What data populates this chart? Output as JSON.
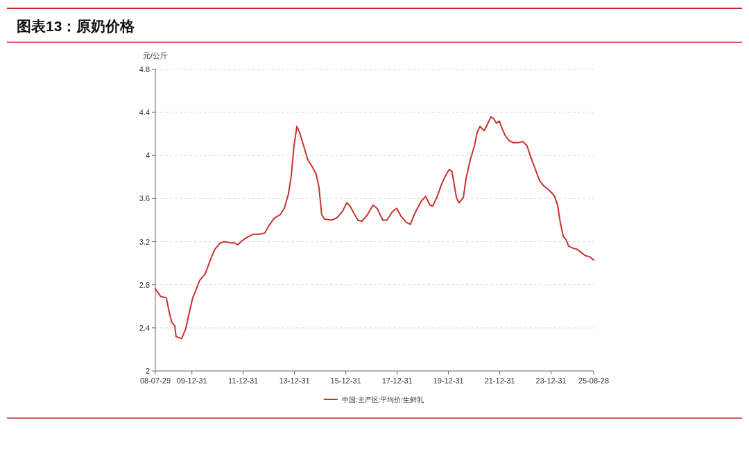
{
  "chart_data": {
    "type": "line",
    "title": "图表13：原奶价格",
    "ylabel": "元/公斤",
    "xlim": [
      "2008-07-29",
      "2025-08-28"
    ],
    "xticks": [
      {
        "value": "2008-07-29",
        "label": "08-07-29"
      },
      {
        "value": "2009-12-31",
        "label": "09-12-31"
      },
      {
        "value": "2011-12-31",
        "label": "11-12-31"
      },
      {
        "value": "2013-12-31",
        "label": "13-12-31"
      },
      {
        "value": "2015-12-31",
        "label": "15-12-31"
      },
      {
        "value": "2017-12-31",
        "label": "17-12-31"
      },
      {
        "value": "2019-12-31",
        "label": "19-12-31"
      },
      {
        "value": "2021-12-31",
        "label": "21-12-31"
      },
      {
        "value": "2023-12-31",
        "label": "23-12-31"
      },
      {
        "value": "2025-08-28",
        "label": "25-08-28"
      }
    ],
    "ylim": [
      2,
      4.8
    ],
    "yticks": [
      2,
      2.4,
      2.8,
      3.2,
      3.6,
      4,
      4.4,
      4.8
    ],
    "grid": "y",
    "legend": "bottom",
    "marker": "none",
    "line_style": "solid",
    "x": [
      "2008-07-29",
      "2008-10-15",
      "2009-01-01",
      "2009-02-10",
      "2009-03-20",
      "2009-05-01",
      "2009-05-20",
      "2009-06-28",
      "2009-08-07",
      "2009-10-04",
      "2009-11-13",
      "2010-01-12",
      "2010-02-20",
      "2010-04-20",
      "2010-07-08",
      "2010-09-25",
      "2010-11-24",
      "2011-02-10",
      "2011-04-10",
      "2011-06-28",
      "2011-08-25",
      "2011-10-15",
      "2011-12-01",
      "2012-02-20",
      "2012-05-28",
      "2012-08-17",
      "2012-11-03",
      "2013-01-01",
      "2013-03-20",
      "2013-06-10",
      "2013-08-07",
      "2013-10-04",
      "2013-11-13",
      "2013-12-24",
      "2014-02-02",
      "2014-03-10",
      "2014-05-10",
      "2014-07-08",
      "2014-09-05",
      "2014-11-03",
      "2014-12-13",
      "2015-01-22",
      "2015-03-03",
      "2015-06-10",
      "2015-08-25",
      "2015-11-13",
      "2016-01-12",
      "2016-02-20",
      "2016-04-20",
      "2016-06-20",
      "2016-08-17",
      "2016-11-03",
      "2017-01-22",
      "2017-03-20",
      "2017-06-10",
      "2017-08-07",
      "2017-10-27",
      "2017-12-24",
      "2018-02-20",
      "2018-05-10",
      "2018-07-08",
      "2018-09-05",
      "2018-12-13",
      "2019-02-10",
      "2019-04-12",
      "2019-05-20",
      "2019-07-18",
      "2019-10-04",
      "2019-12-04",
      "2020-01-12",
      "2020-02-20",
      "2020-04-01",
      "2020-04-23",
      "2020-05-28",
      "2020-07-30",
      "2020-09-05",
      "2020-11-05",
      "2021-01-05",
      "2021-02-14",
      "2021-03-25",
      "2021-05-22",
      "2021-07-01",
      "2021-08-28",
      "2021-10-08",
      "2021-11-13",
      "2021-12-24",
      "2022-02-02",
      "2022-03-14",
      "2022-05-10",
      "2022-07-08",
      "2022-09-27",
      "2022-11-24",
      "2023-01-22",
      "2023-03-20",
      "2023-05-22",
      "2023-07-18",
      "2023-09-16",
      "2023-11-13",
      "2024-01-15",
      "2024-02-20",
      "2024-04-01",
      "2024-05-10",
      "2024-06-20",
      "2024-07-30",
      "2024-09-05",
      "2024-11-05",
      "2025-01-05",
      "2025-03-03",
      "2025-05-01",
      "2025-07-01",
      "2025-08-28"
    ],
    "series": [
      {
        "name": "中国:主产区:平均价:生鲜乳",
        "color": "#c8312c",
        "values": [
          2.76,
          2.69,
          2.68,
          2.55,
          2.45,
          2.42,
          2.32,
          2.31,
          2.3,
          2.39,
          2.51,
          2.68,
          2.74,
          2.84,
          2.9,
          3.04,
          3.13,
          3.19,
          3.2,
          3.19,
          3.19,
          3.17,
          3.2,
          3.24,
          3.27,
          3.27,
          3.28,
          3.35,
          3.42,
          3.45,
          3.51,
          3.64,
          3.8,
          4.09,
          4.27,
          4.22,
          4.09,
          3.96,
          3.9,
          3.83,
          3.71,
          3.45,
          3.41,
          3.4,
          3.42,
          3.48,
          3.56,
          3.54,
          3.47,
          3.4,
          3.39,
          3.45,
          3.54,
          3.51,
          3.4,
          3.4,
          3.48,
          3.51,
          3.44,
          3.38,
          3.36,
          3.46,
          3.58,
          3.62,
          3.54,
          3.53,
          3.61,
          3.75,
          3.83,
          3.87,
          3.85,
          3.69,
          3.61,
          3.56,
          3.61,
          3.78,
          3.96,
          4.09,
          4.22,
          4.27,
          4.23,
          4.28,
          4.36,
          4.34,
          4.3,
          4.32,
          4.25,
          4.19,
          4.14,
          4.12,
          4.12,
          4.13,
          4.09,
          3.98,
          3.87,
          3.77,
          3.72,
          3.69,
          3.65,
          3.62,
          3.54,
          3.38,
          3.25,
          3.22,
          3.16,
          3.14,
          3.13,
          3.1,
          3.07,
          3.06,
          3.03
        ]
      }
    ]
  }
}
